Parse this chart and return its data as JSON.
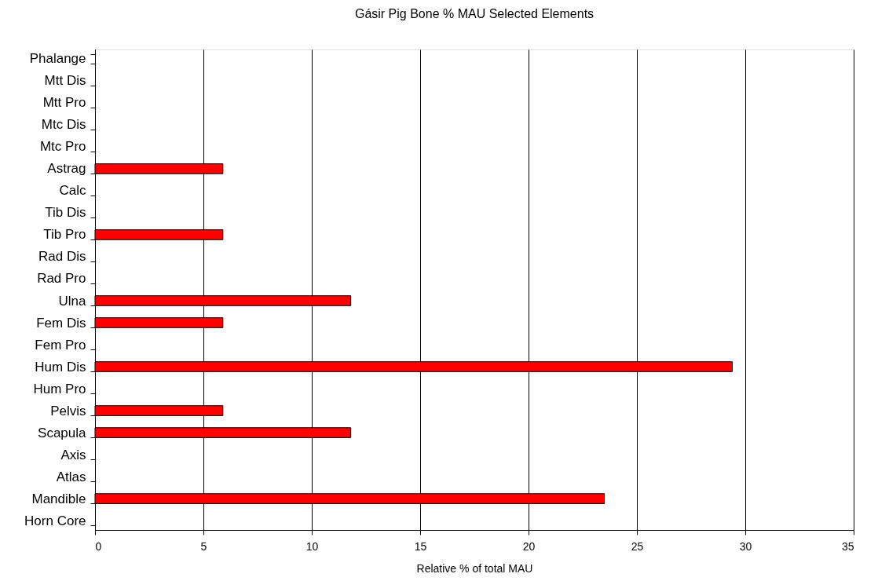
{
  "chart_data": {
    "type": "bar",
    "orientation": "horizontal",
    "title": "Gásir  Pig Bone % MAU Selected Elements",
    "xlabel": "Relative % of total MAU",
    "categories": [
      "Phalange",
      "Mtt Dis",
      "Mtt Pro",
      "Mtc Dis",
      "Mtc Pro",
      "Astrag",
      "Calc",
      "Tib Dis",
      "Tib Pro",
      "Rad Dis",
      "Rad Pro",
      "Ulna",
      "Fem Dis",
      "Fem Pro",
      "Hum Dis",
      "Hum Pro",
      "Pelvis",
      "Scapula",
      "Axis",
      "Atlas",
      "Mandible",
      "Horn Core"
    ],
    "values": [
      0,
      0,
      0,
      0,
      0,
      5.9,
      0,
      0,
      5.9,
      0,
      0,
      11.8,
      5.9,
      0,
      29.4,
      0,
      5.9,
      11.8,
      0,
      0,
      23.5,
      0
    ],
    "color": "#ff0000",
    "xlim": [
      0,
      35
    ],
    "xticks": [
      0,
      5,
      10,
      15,
      20,
      25,
      30,
      35
    ],
    "grid": "x"
  }
}
